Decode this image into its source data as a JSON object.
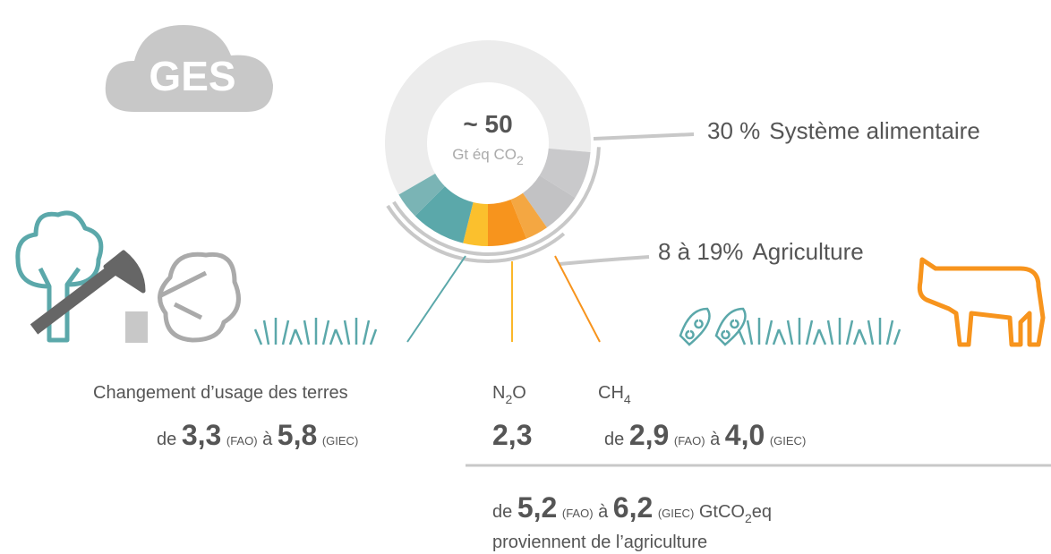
{
  "cloud": {
    "label": "GES"
  },
  "donut": {
    "total": "~ 50",
    "unit": [
      "Gt éq CO",
      "2"
    ]
  },
  "callouts": [
    {
      "share": "30 %",
      "label": "Système alimentaire"
    },
    {
      "share": "8 à 19%",
      "label": "Agriculture"
    }
  ],
  "land_use": {
    "title": "Changement d’usage des terres",
    "range": [
      "de",
      "3,3",
      "(FAO)",
      "à",
      "5,8",
      "(GIEC)"
    ]
  },
  "n2o": {
    "formula": [
      "N",
      "2",
      "O"
    ],
    "value": "2,3"
  },
  "ch4": {
    "formula": [
      "CH",
      "4"
    ],
    "range": [
      "de",
      "2,9",
      "(FAO)",
      "à",
      "4,0",
      "(GIEC)"
    ]
  },
  "total": {
    "range": [
      "de",
      "5,2",
      "(FAO)",
      "à",
      "6,2",
      "(GIEC)",
      "GtCO",
      "2",
      "eq"
    ],
    "note": "proviennent de l’agriculture"
  }
}
